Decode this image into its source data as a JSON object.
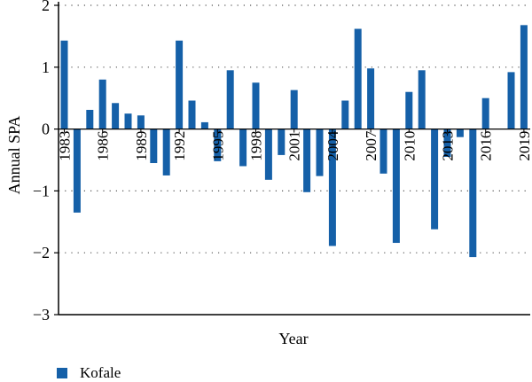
{
  "chart_data": {
    "type": "bar",
    "xlabel": "Year",
    "ylabel": "Annual SPA",
    "ylim": [
      -3,
      2
    ],
    "yticks": [
      "−3",
      "−2",
      "−1",
      "0",
      "1",
      "2"
    ],
    "ytick_values": [
      -3,
      -2,
      -1,
      0,
      1,
      2
    ],
    "grid": "dotted-horizontal",
    "legend_position": "bottom-left",
    "categories": [
      1983,
      1984,
      1985,
      1986,
      1987,
      1988,
      1989,
      1990,
      1991,
      1992,
      1993,
      1994,
      1995,
      1996,
      1997,
      1998,
      1999,
      2000,
      2001,
      2002,
      2003,
      2004,
      2005,
      2006,
      2007,
      2008,
      2009,
      2010,
      2011,
      2012,
      2013,
      2014,
      2015,
      2016,
      2017,
      2018,
      2019
    ],
    "xtick_labels": [
      "1983",
      "1986",
      "1989",
      "1992",
      "1995",
      "1998",
      "2001",
      "2004",
      "2007",
      "2010",
      "2013",
      "2016",
      "2019"
    ],
    "series": [
      {
        "name": "Kofale",
        "color": "#1560a8",
        "values": [
          1.43,
          -1.35,
          0.31,
          0.8,
          0.42,
          0.25,
          0.22,
          -0.55,
          -0.75,
          1.43,
          0.46,
          0.11,
          -0.52,
          0.95,
          -0.6,
          0.75,
          -0.82,
          -0.42,
          0.63,
          -1.02,
          -0.76,
          -1.89,
          0.46,
          1.62,
          0.98,
          -0.72,
          -1.84,
          0.6,
          0.95,
          -1.62,
          -0.45,
          -0.13,
          -2.07,
          0.5,
          0.0,
          0.92,
          1.68
        ]
      }
    ]
  }
}
